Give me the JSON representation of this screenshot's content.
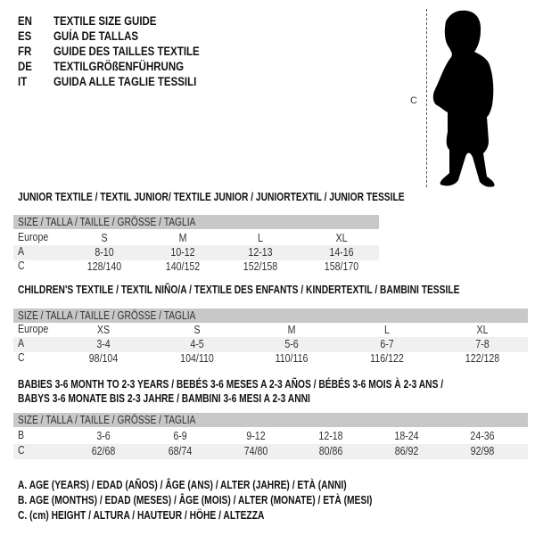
{
  "header": {
    "languages": [
      {
        "code": "EN",
        "text": "TEXTILE SIZE GUIDE"
      },
      {
        "code": "ES",
        "text": "GUÍA DE TALLAS"
      },
      {
        "code": "FR",
        "text": "GUIDE DES TAILLES TEXTILE"
      },
      {
        "code": "DE",
        "text": "TEXTILGRÖßENFÜHRUNG"
      },
      {
        "code": "IT",
        "text": "GUIDA ALLE TAGLIE TESSILI"
      }
    ],
    "figure_label": "C"
  },
  "tables": [
    {
      "title": "JUNIOR TEXTILE / TEXTIL JUNIOR/ TEXTILE JUNIOR / JUNIORTEXTIL / JUNIOR TESSILE",
      "size_header": "SIZE / TALLA / TAILLE / GRÖSSE / TAGLIA",
      "rows": [
        {
          "label": "Europe",
          "values": [
            "S",
            "M",
            "L",
            "XL"
          ]
        },
        {
          "label": "A",
          "values": [
            "8-10",
            "10-12",
            "12-13",
            "14-16"
          ]
        },
        {
          "label": "C",
          "values": [
            "128/140",
            "140/152",
            "152/158",
            "158/170"
          ]
        }
      ]
    },
    {
      "title": "CHILDREN'S TEXTILE / TEXTIL NIÑO/A / TEXTILE DES ENFANTS / KINDERTEXTIL / BAMBINI TESSILE",
      "size_header": "SIZE / TALLA / TAILLE / GRÖSSE / TAGLIA",
      "rows": [
        {
          "label": "Europe",
          "values": [
            "XS",
            "S",
            "M",
            "L",
            "XL"
          ]
        },
        {
          "label": "A",
          "values": [
            "3-4",
            "4-5",
            "5-6",
            "6-7",
            "7-8"
          ]
        },
        {
          "label": "C",
          "values": [
            "98/104",
            "104/110",
            "110/116",
            "116/122",
            "122/128"
          ]
        }
      ]
    },
    {
      "title": "BABIES 3-6 MONTH TO 2-3 YEARS / BEBÉS 3-6 MESES A 2-3 AÑOS / BÉBÉS 3-6 MOIS À 2-3 ANS /",
      "title_line2": "BABYS 3-6 MONATE BIS 2-3 JAHRE / BAMBINI 3-6 MESI A 2-3 ANNI",
      "size_header": "SIZE / TALLA / TAILLE / GRÖSSE / TAGLIA",
      "rows": [
        {
          "label": "B",
          "values": [
            "3-6",
            "6-9",
            "9-12",
            "12-18",
            "18-24",
            "24-36"
          ]
        },
        {
          "label": "C",
          "values": [
            "62/68",
            "68/74",
            "74/80",
            "80/86",
            "86/92",
            "92/98"
          ]
        }
      ]
    }
  ],
  "legend": [
    "A. AGE (YEARS) / EDAD (AÑOS) / ÂGE (ANS) / ALTER (JAHRE) / ETÀ (ANNI)",
    "B. AGE (MONTHS) / EDAD (MESES) / ÂGE (MOIS) / ALTER (MONATE) / ETÀ (MESI)",
    "C. (cm) HEIGHT / ALTURA / HAUTEUR / HÖHE / ALTEZZA"
  ],
  "colors": {
    "header_bar": "#c8c8c8",
    "stripe": "#f0f0f0",
    "text": "#222222"
  }
}
